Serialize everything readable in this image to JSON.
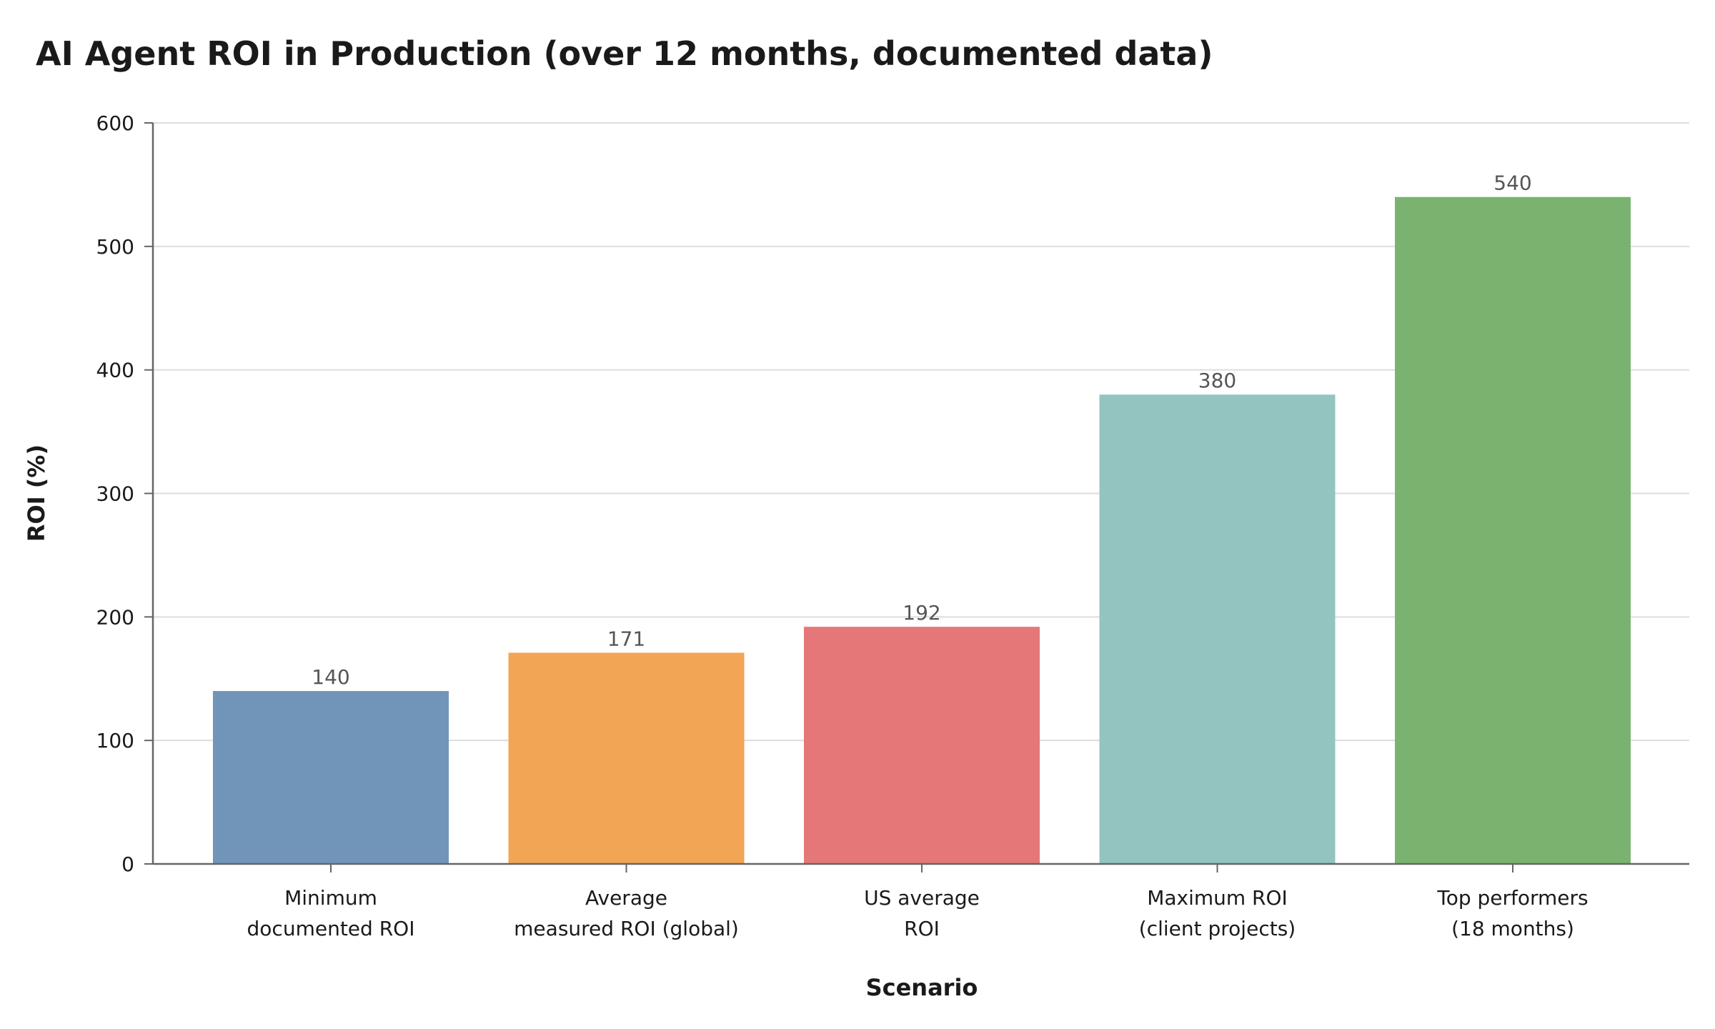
{
  "chart_data": {
    "type": "bar",
    "title": "AI Agent ROI in Production (over 12 months, documented data)",
    "xlabel": "Scenario",
    "ylabel": "ROI (%)",
    "categories": [
      [
        "Minimum",
        "documented ROI"
      ],
      [
        "Average",
        "measured ROI (global)"
      ],
      [
        "US average",
        "ROI"
      ],
      [
        "Maximum ROI",
        "(client projects)"
      ],
      [
        "Top performers",
        "(18 months)"
      ]
    ],
    "values": [
      140,
      171,
      192,
      380,
      540
    ],
    "colors": [
      "#7095b9",
      "#f2a555",
      "#e57779",
      "#93c4c0",
      "#7ab370"
    ],
    "ylim": [
      0,
      600
    ],
    "yticks": [
      0,
      100,
      200,
      300,
      400,
      500,
      600
    ],
    "grid": true,
    "legend": "none"
  }
}
